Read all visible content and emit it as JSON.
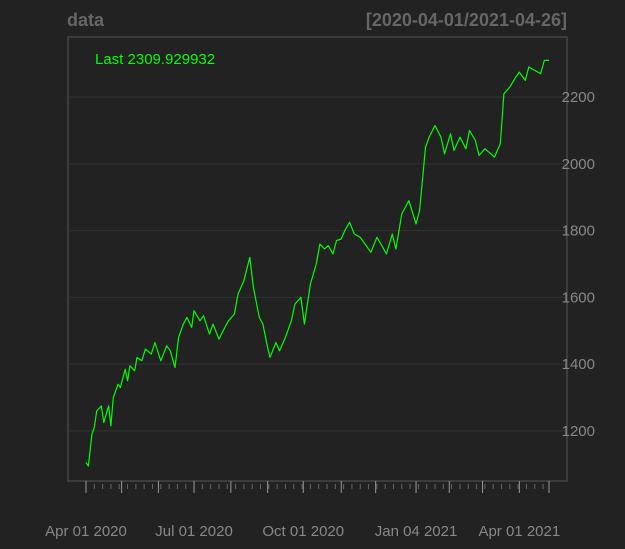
{
  "title_left": "data",
  "title_right": "[2020-04-01/2021-04-26]",
  "last_label": "Last 2309.929932",
  "colors": {
    "background": "#222222",
    "line": "#00ff00",
    "grid": "#333333",
    "axis": "#888888",
    "title": "#666666"
  },
  "chart_data": {
    "type": "line",
    "grid": true,
    "y_axis_position": "right",
    "x_range": [
      "2020-04-01",
      "2021-04-26"
    ],
    "ylim": [
      1050,
      2380
    ],
    "y_ticks": [
      1200,
      1400,
      1600,
      1800,
      2000,
      2200
    ],
    "x_tick_labels": [
      {
        "date": "2020-04-01",
        "label": "Apr 01 2020"
      },
      {
        "date": "2020-07-01",
        "label": "Jul 01 2020"
      },
      {
        "date": "2020-10-01",
        "label": "Oct 01 2020"
      },
      {
        "date": "2021-01-04",
        "label": "Jan 04 2021"
      },
      {
        "date": "2021-04-01",
        "label": "Apr 01 2021"
      }
    ],
    "x_major_ticks": [
      "2020-04-01",
      "2020-05-01",
      "2020-06-01",
      "2020-07-01",
      "2020-08-01",
      "2020-09-01",
      "2020-10-01",
      "2020-11-02",
      "2020-12-01",
      "2021-01-04",
      "2021-02-01",
      "2021-03-01",
      "2021-04-01",
      "2021-04-26"
    ],
    "series": [
      {
        "x": [
          "2020-04-01",
          "2020-04-03",
          "2020-04-06",
          "2020-04-08",
          "2020-04-10",
          "2020-04-14",
          "2020-04-16",
          "2020-04-20",
          "2020-04-22",
          "2020-04-24",
          "2020-04-28",
          "2020-04-30",
          "2020-05-04",
          "2020-05-06",
          "2020-05-08",
          "2020-05-12",
          "2020-05-14",
          "2020-05-18",
          "2020-05-21",
          "2020-05-26",
          "2020-05-29",
          "2020-06-03",
          "2020-06-08",
          "2020-06-11",
          "2020-06-15",
          "2020-06-18",
          "2020-06-22",
          "2020-06-25",
          "2020-06-29",
          "2020-07-01",
          "2020-07-06",
          "2020-07-09",
          "2020-07-14",
          "2020-07-17",
          "2020-07-22",
          "2020-07-27",
          "2020-07-30",
          "2020-08-04",
          "2020-08-07",
          "2020-08-12",
          "2020-08-17",
          "2020-08-20",
          "2020-08-25",
          "2020-08-28",
          "2020-09-01",
          "2020-09-03",
          "2020-09-08",
          "2020-09-11",
          "2020-09-16",
          "2020-09-21",
          "2020-09-24",
          "2020-09-29",
          "2020-10-02",
          "2020-10-07",
          "2020-10-12",
          "2020-10-15",
          "2020-10-19",
          "2020-10-22",
          "2020-10-26",
          "2020-10-29",
          "2020-11-02",
          "2020-11-05",
          "2020-11-09",
          "2020-11-13",
          "2020-11-18",
          "2020-11-23",
          "2020-11-27",
          "2020-12-02",
          "2020-12-07",
          "2020-12-10",
          "2020-12-15",
          "2020-12-18",
          "2020-12-23",
          "2020-12-29",
          "2021-01-04",
          "2021-01-07",
          "2021-01-12",
          "2021-01-15",
          "2021-01-20",
          "2021-01-25",
          "2021-01-28",
          "2021-02-02",
          "2021-02-05",
          "2021-02-10",
          "2021-02-15",
          "2021-02-18",
          "2021-02-23",
          "2021-02-26",
          "2021-03-03",
          "2021-03-08",
          "2021-03-11",
          "2021-03-16",
          "2021-03-19",
          "2021-03-24",
          "2021-03-29",
          "2021-04-01",
          "2021-04-06",
          "2021-04-09",
          "2021-04-14",
          "2021-04-19",
          "2021-04-22",
          "2021-04-26"
        ],
        "y": [
          1105,
          1095,
          1190,
          1210,
          1260,
          1275,
          1225,
          1275,
          1215,
          1300,
          1340,
          1330,
          1385,
          1350,
          1395,
          1380,
          1420,
          1410,
          1445,
          1430,
          1465,
          1410,
          1455,
          1440,
          1390,
          1480,
          1520,
          1540,
          1510,
          1560,
          1530,
          1545,
          1490,
          1520,
          1475,
          1510,
          1530,
          1550,
          1610,
          1650,
          1720,
          1630,
          1540,
          1520,
          1450,
          1420,
          1465,
          1440,
          1480,
          1530,
          1580,
          1600,
          1520,
          1640,
          1700,
          1760,
          1745,
          1755,
          1730,
          1770,
          1775,
          1800,
          1825,
          1790,
          1780,
          1755,
          1735,
          1780,
          1750,
          1730,
          1790,
          1745,
          1850,
          1890,
          1820,
          1860,
          2050,
          2080,
          2115,
          2080,
          2030,
          2090,
          2040,
          2080,
          2045,
          2100,
          2070,
          2025,
          2045,
          2030,
          2020,
          2060,
          2210,
          2230,
          2260,
          2275,
          2250,
          2290,
          2280,
          2270,
          2310,
          2309.929932
        ]
      }
    ]
  }
}
